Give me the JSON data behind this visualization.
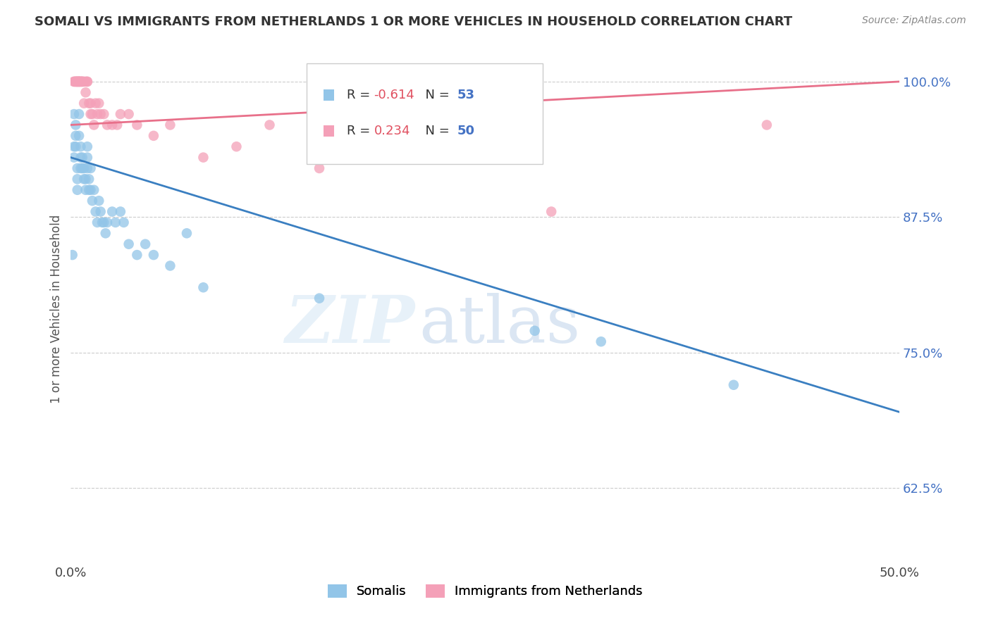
{
  "title": "SOMALI VS IMMIGRANTS FROM NETHERLANDS 1 OR MORE VEHICLES IN HOUSEHOLD CORRELATION CHART",
  "source": "Source: ZipAtlas.com",
  "ylabel_label": "1 or more Vehicles in Household",
  "xlim": [
    0.0,
    0.5
  ],
  "ylim": [
    0.555,
    1.025
  ],
  "xtick_positions": [
    0.0,
    0.1,
    0.2,
    0.3,
    0.4,
    0.5
  ],
  "xticklabels": [
    "0.0%",
    "",
    "",
    "",
    "",
    "50.0%"
  ],
  "ytick_positions": [
    0.625,
    0.75,
    0.875,
    1.0
  ],
  "yticklabels": [
    "62.5%",
    "75.0%",
    "87.5%",
    "100.0%"
  ],
  "legend_label1": "Somalis",
  "legend_label2": "Immigrants from Netherlands",
  "R_somali": -0.614,
  "N_somali": 53,
  "R_netherlands": 0.234,
  "N_netherlands": 50,
  "color_somali": "#92c5e8",
  "color_netherlands": "#f4a0b8",
  "line_color_somali": "#3a7fc1",
  "line_color_netherlands": "#e8708a",
  "background_color": "#ffffff",
  "watermark_zip": "ZIP",
  "watermark_atlas": "atlas",
  "somali_x": [
    0.001,
    0.002,
    0.002,
    0.002,
    0.003,
    0.003,
    0.003,
    0.004,
    0.004,
    0.004,
    0.005,
    0.005,
    0.006,
    0.006,
    0.006,
    0.007,
    0.007,
    0.008,
    0.008,
    0.009,
    0.009,
    0.01,
    0.01,
    0.01,
    0.011,
    0.011,
    0.012,
    0.012,
    0.013,
    0.014,
    0.015,
    0.016,
    0.017,
    0.018,
    0.019,
    0.02,
    0.021,
    0.022,
    0.025,
    0.027,
    0.03,
    0.032,
    0.035,
    0.04,
    0.045,
    0.05,
    0.06,
    0.07,
    0.08,
    0.15,
    0.28,
    0.32,
    0.4
  ],
  "somali_y": [
    0.84,
    0.97,
    0.94,
    0.93,
    0.94,
    0.95,
    0.96,
    0.92,
    0.91,
    0.9,
    0.95,
    0.97,
    0.92,
    0.93,
    0.94,
    0.92,
    0.93,
    0.91,
    0.92,
    0.9,
    0.91,
    0.93,
    0.92,
    0.94,
    0.9,
    0.91,
    0.92,
    0.9,
    0.89,
    0.9,
    0.88,
    0.87,
    0.89,
    0.88,
    0.87,
    0.87,
    0.86,
    0.87,
    0.88,
    0.87,
    0.88,
    0.87,
    0.85,
    0.84,
    0.85,
    0.84,
    0.83,
    0.86,
    0.81,
    0.8,
    0.77,
    0.76,
    0.72
  ],
  "netherlands_x": [
    0.002,
    0.002,
    0.003,
    0.003,
    0.003,
    0.004,
    0.004,
    0.004,
    0.004,
    0.005,
    0.005,
    0.005,
    0.005,
    0.006,
    0.006,
    0.006,
    0.007,
    0.007,
    0.007,
    0.008,
    0.008,
    0.009,
    0.009,
    0.01,
    0.01,
    0.011,
    0.012,
    0.012,
    0.013,
    0.014,
    0.015,
    0.016,
    0.017,
    0.018,
    0.02,
    0.022,
    0.025,
    0.028,
    0.03,
    0.035,
    0.04,
    0.05,
    0.06,
    0.08,
    0.1,
    0.12,
    0.15,
    0.2,
    0.29,
    0.42
  ],
  "netherlands_y": [
    1.0,
    1.0,
    1.0,
    1.0,
    1.0,
    1.0,
    1.0,
    1.0,
    1.0,
    1.0,
    1.0,
    1.0,
    1.0,
    1.0,
    1.0,
    1.0,
    1.0,
    1.0,
    1.0,
    1.0,
    0.98,
    1.0,
    0.99,
    1.0,
    1.0,
    0.98,
    0.97,
    0.98,
    0.97,
    0.96,
    0.98,
    0.97,
    0.98,
    0.97,
    0.97,
    0.96,
    0.96,
    0.96,
    0.97,
    0.97,
    0.96,
    0.95,
    0.96,
    0.93,
    0.94,
    0.96,
    0.92,
    0.93,
    0.88,
    0.96
  ],
  "blue_line_x0": 0.0,
  "blue_line_y0": 0.93,
  "blue_line_x1": 0.5,
  "blue_line_y1": 0.695,
  "pink_line_x0": 0.0,
  "pink_line_y0": 0.96,
  "pink_line_x1": 0.5,
  "pink_line_y1": 1.0
}
